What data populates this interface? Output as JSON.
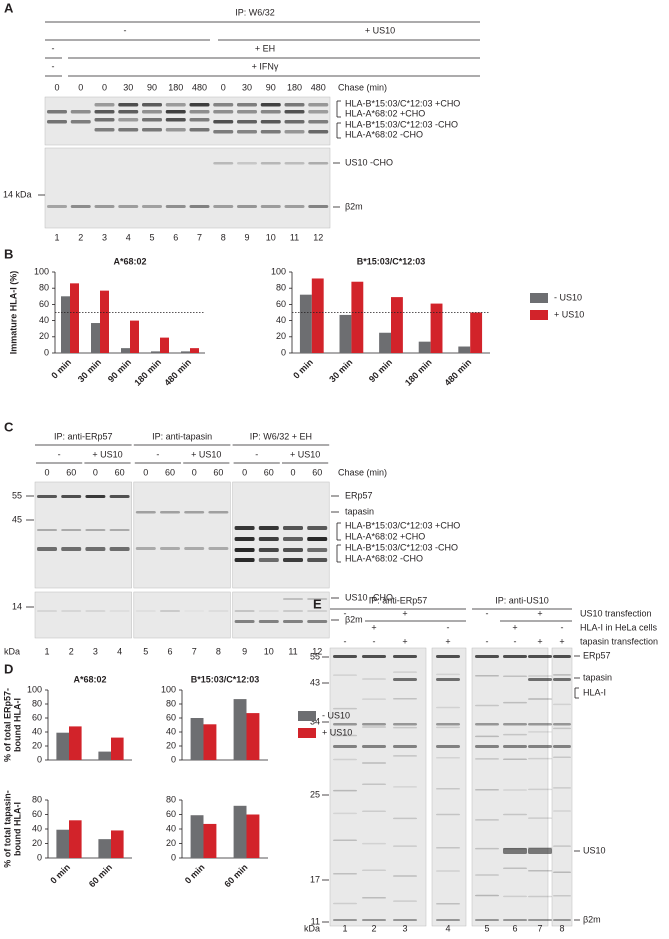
{
  "panel_A": {
    "letter": "A",
    "ip": "IP: W6/32",
    "us10": [
      "-",
      "+ US10"
    ],
    "eh": [
      "-",
      "+ EH"
    ],
    "ifn": [
      "-",
      "+ IFNγ"
    ],
    "chase": [
      0,
      0,
      0,
      30,
      90,
      180,
      480,
      0,
      30,
      90,
      180,
      480
    ],
    "chase_label": "Chase (min)",
    "bands": [
      "HLA-B*15:03/C*12:03 +CHO",
      "HLA-A*68:02 +CHO",
      "HLA-B*15:03/C*12:03 -CHO",
      "HLA-A*68:02 -CHO",
      "US10 -CHO",
      "β2m"
    ],
    "marker": "14 kDa",
    "lanes": [
      1,
      2,
      3,
      4,
      5,
      6,
      7,
      8,
      9,
      10,
      11,
      12
    ]
  },
  "panel_B": {
    "letter": "B"
  },
  "panel_C": {
    "letter": "C",
    "ip": [
      "IP: anti-ERp57",
      "IP: anti-tapasin",
      "IP: W6/32 + EH"
    ],
    "conditions": [
      "-",
      "+ US10",
      "-",
      "+ US10",
      "-",
      "+ US10"
    ],
    "chase": [
      0,
      60,
      0,
      60,
      0,
      60,
      0,
      60,
      0,
      60,
      0,
      60
    ],
    "chase_label": "Chase (min)",
    "bands": [
      "ERp57",
      "tapasin",
      "HLA-B*15:03/C*12:03 +CHO",
      "HLA-A*68:02 +CHO",
      "HLA-B*15:03/C*12:03 -CHO",
      "HLA-A*68:02 -CHO",
      "US10 -CHO",
      "β2m"
    ],
    "markers": [
      55,
      45,
      14
    ],
    "unit": "kDa",
    "lanes": [
      1,
      2,
      3,
      4,
      5,
      6,
      7,
      8,
      9,
      10,
      11,
      12
    ]
  },
  "panel_D": {
    "letter": "D"
  },
  "panel_E": {
    "letter": "E",
    "ip": [
      "IP: anti-ERp57",
      "IP: anti-US10"
    ],
    "rows": [
      "US10 transfection",
      "HLA-I in HeLa cells",
      "tapasin transfection"
    ],
    "us10_signs": [
      "-",
      "+",
      "-",
      "+"
    ],
    "hla_signs": [
      "+",
      "-",
      "+",
      "-"
    ],
    "tapasin_signs": [
      "-",
      "-",
      "+",
      "+",
      "-",
      "-",
      "+",
      "+"
    ],
    "bands": [
      "ERp57",
      "tapasin",
      "HLA-I",
      "US10",
      "β2m"
    ],
    "markers": [
      55,
      43,
      34,
      25,
      17,
      11
    ],
    "unit": "kDa",
    "lanes": [
      1,
      2,
      3,
      4,
      5,
      6,
      7,
      8
    ]
  },
  "chart_data": [
    {
      "type": "bar",
      "title": "A*68:02",
      "ylabel": "Immature HLA-I (%)",
      "categories": [
        "0 min",
        "30 min",
        "90 min",
        "180 min",
        "480 min"
      ],
      "series": [
        {
          "name": "- US10",
          "color": "#6d6e71",
          "values": [
            70,
            37,
            6,
            2,
            2
          ]
        },
        {
          "name": "+ US10",
          "color": "#d2232a",
          "values": [
            86,
            77,
            40,
            19,
            6
          ]
        }
      ],
      "ylim": [
        0,
        100
      ],
      "yticks": [
        0,
        20,
        40,
        60,
        80,
        100
      ],
      "reference_line": 50
    },
    {
      "type": "bar",
      "title": "B*15:03/C*12:03",
      "categories": [
        "0 min",
        "30 min",
        "90 min",
        "180 min",
        "480 min"
      ],
      "series": [
        {
          "name": "- US10",
          "color": "#6d6e71",
          "values": [
            72,
            47,
            25,
            14,
            8
          ]
        },
        {
          "name": "+ US10",
          "color": "#d2232a",
          "values": [
            92,
            88,
            69,
            61,
            50
          ]
        }
      ],
      "ylim": [
        0,
        100
      ],
      "yticks": [
        0,
        20,
        40,
        60,
        80,
        100
      ],
      "reference_line": 50,
      "legend": true
    },
    {
      "type": "bar",
      "title": "A*68:02",
      "ylabel": [
        "% of total ERp57-",
        "bound HLA-I"
      ],
      "categories": [
        null,
        null
      ],
      "series": [
        {
          "name": "- US10",
          "color": "#6d6e71",
          "values": [
            39,
            12
          ]
        },
        {
          "name": "+ US10",
          "color": "#d2232a",
          "values": [
            48,
            32
          ]
        }
      ],
      "ylim": [
        0,
        100
      ],
      "yticks": [
        0,
        20,
        40,
        60,
        80,
        100
      ]
    },
    {
      "type": "bar",
      "title": "B*15:03/C*12:03",
      "categories": [
        null,
        null
      ],
      "series": [
        {
          "name": "- US10",
          "color": "#6d6e71",
          "values": [
            60,
            87
          ]
        },
        {
          "name": "+ US10",
          "color": "#d2232a",
          "values": [
            51,
            67
          ]
        }
      ],
      "ylim": [
        0,
        100
      ],
      "yticks": [
        0,
        20,
        40,
        60,
        80,
        100
      ],
      "legend": true
    },
    {
      "type": "bar",
      "ylabel": [
        "% of total tapasin-",
        "bound HLA-I"
      ],
      "categories": [
        "0 min",
        "60 min"
      ],
      "series": [
        {
          "name": "- US10",
          "color": "#6d6e71",
          "values": [
            39,
            26
          ]
        },
        {
          "name": "+ US10",
          "color": "#d2232a",
          "values": [
            52,
            38
          ]
        }
      ],
      "ylim": [
        0,
        80
      ],
      "yticks": [
        0,
        20,
        40,
        60,
        80
      ]
    },
    {
      "type": "bar",
      "categories": [
        "0 min",
        "60 min"
      ],
      "series": [
        {
          "name": "- US10",
          "color": "#6d6e71",
          "values": [
            59,
            72
          ]
        },
        {
          "name": "+ US10",
          "color": "#d2232a",
          "values": [
            47,
            60
          ]
        }
      ],
      "ylim": [
        0,
        80
      ],
      "yticks": [
        0,
        20,
        40,
        60,
        80
      ]
    }
  ]
}
